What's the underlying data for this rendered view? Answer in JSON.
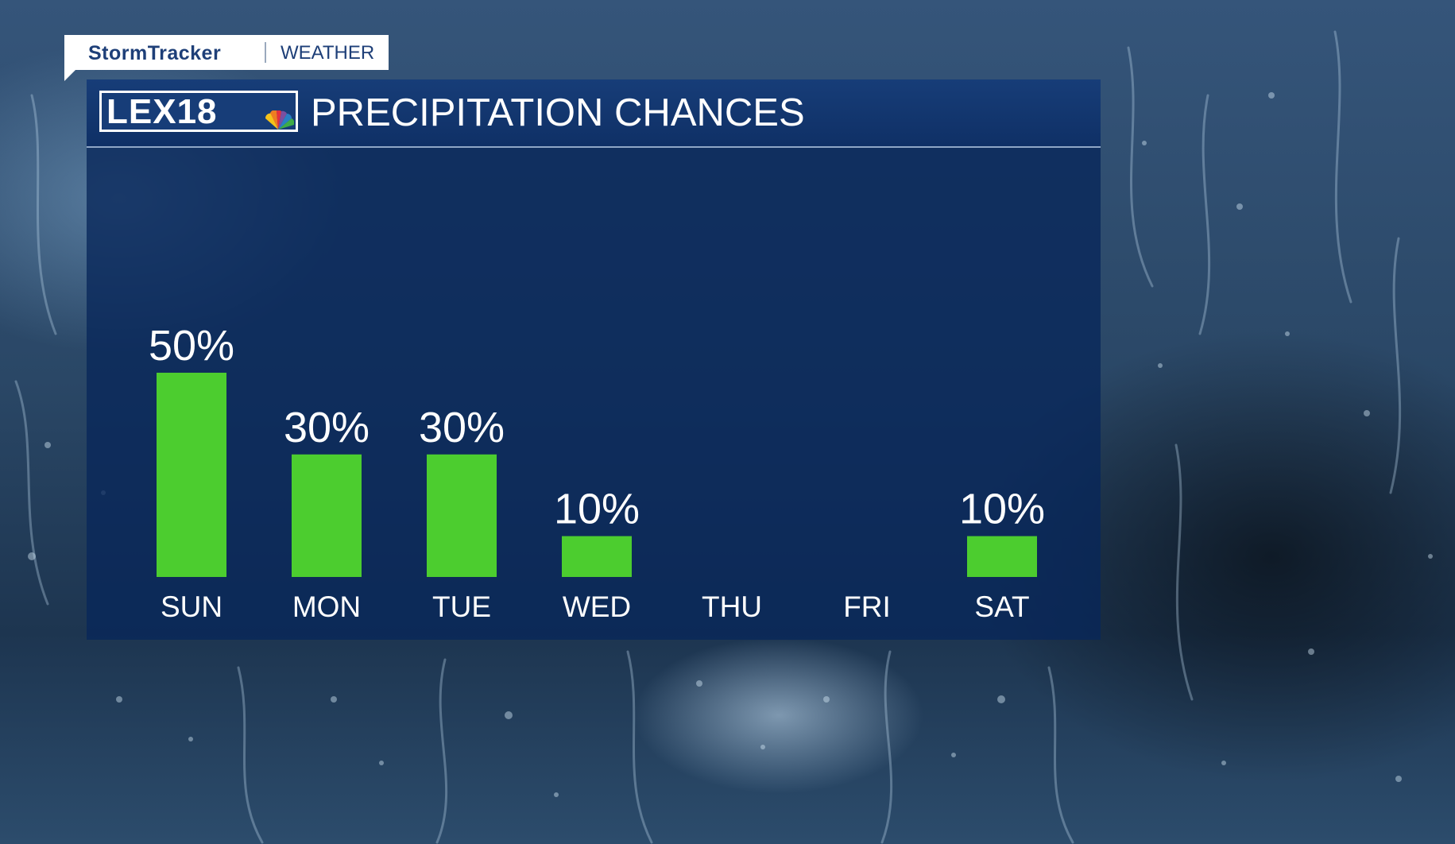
{
  "tab": {
    "brand": "StormTracker",
    "section": "WEATHER"
  },
  "logo": {
    "text": "LEX18",
    "icon": "peacock-icon"
  },
  "panel": {
    "title": "PRECIPITATION CHANCES"
  },
  "colors": {
    "bar": "#4ccd2f",
    "panel": "#0a2a5c",
    "text": "#ffffff",
    "brand": "#1e3f78"
  },
  "chart_data": {
    "type": "bar",
    "title": "PRECIPITATION CHANCES",
    "xlabel": "",
    "ylabel": "",
    "unit": "%",
    "categories": [
      "SUN",
      "MON",
      "TUE",
      "WED",
      "THU",
      "FRI",
      "SAT"
    ],
    "values": [
      50,
      30,
      30,
      10,
      0,
      0,
      10
    ],
    "value_labels": [
      "50%",
      "30%",
      "30%",
      "10%",
      "",
      "",
      "10%"
    ],
    "ylim": [
      0,
      100
    ],
    "grid": false,
    "legend": "none"
  }
}
